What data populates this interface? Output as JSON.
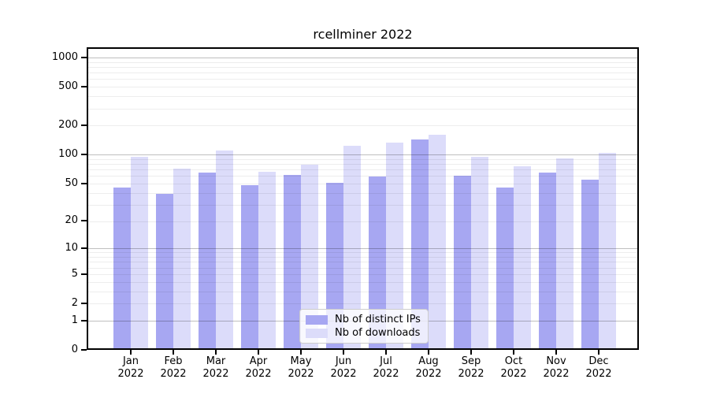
{
  "chart_data": {
    "type": "bar",
    "title": "rcellminer 2022",
    "categories": [
      "Jan",
      "Feb",
      "Mar",
      "Apr",
      "May",
      "Jun",
      "Jul",
      "Aug",
      "Sep",
      "Oct",
      "Nov",
      "Dec"
    ],
    "x_year_label": "2022",
    "series": [
      {
        "name": "Nb of distinct IPs",
        "color": "#a7a7f2",
        "values": [
          45,
          39,
          65,
          48,
          61,
          51,
          59,
          142,
          60,
          45,
          65,
          55
        ]
      },
      {
        "name": "Nb of downloads",
        "color": "#dcdcfa",
        "values": [
          95,
          71,
          110,
          66,
          78,
          123,
          132,
          159,
          95,
          75,
          91,
          104
        ]
      }
    ],
    "xlabel": "",
    "ylabel": "",
    "y_axis": {
      "scale": "log1p",
      "tick_values": [
        0,
        1,
        2,
        5,
        10,
        20,
        50,
        100,
        200,
        500,
        1000
      ],
      "range": [
        0,
        1274
      ],
      "major_gridlines_at": [
        1,
        10,
        100,
        1000
      ]
    },
    "grid": true,
    "legend": {
      "position": "bottom-center-inside",
      "entries": [
        "Nb of distinct IPs",
        "Nb of downloads"
      ]
    },
    "colors": {
      "background": "#ffffff",
      "frame": "#000000",
      "major_grid": "#bfbfbf",
      "minor_grid": "#ededed",
      "text": "#000000"
    }
  }
}
